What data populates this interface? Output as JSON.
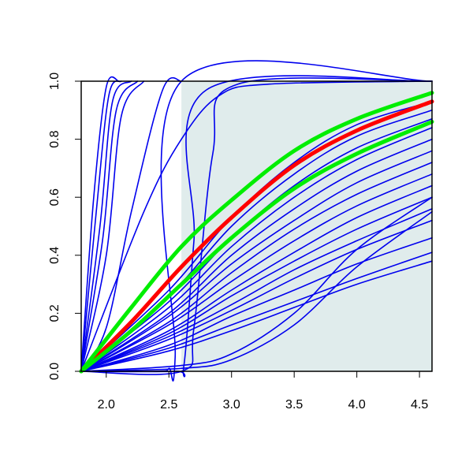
{
  "chart_data": {
    "type": "line",
    "title": "",
    "xlabel": "",
    "ylabel": "",
    "xlim": [
      1.8,
      4.6
    ],
    "ylim": [
      0.0,
      1.0
    ],
    "x_ticks": [
      "2.0",
      "2.5",
      "3.0",
      "3.5",
      "4.0",
      "4.5"
    ],
    "y_ticks": [
      "0.0",
      "0.2",
      "0.4",
      "0.6",
      "0.8",
      "1.0"
    ],
    "x_tick_values": [
      2.0,
      2.5,
      3.0,
      3.5,
      4.0,
      4.5
    ],
    "y_tick_values": [
      0.0,
      0.2,
      0.4,
      0.6,
      0.8,
      1.0
    ],
    "grid": false,
    "shaded_region": {
      "x_from": 2.6,
      "x_to": 4.6,
      "color": "#e0ecec"
    },
    "colors": {
      "ensemble": "#0000ee",
      "highlight_red": "#ff0000",
      "highlight_green": "#00ee00"
    },
    "series": [
      {
        "color": "#0000ee",
        "x": [
          1.8,
          1.9,
          2.0,
          2.1
        ],
        "y": [
          0.0,
          0.6,
          0.98,
          1.0
        ]
      },
      {
        "color": "#0000ee",
        "x": [
          1.8,
          1.92,
          2.02,
          2.12
        ],
        "y": [
          0.0,
          0.55,
          0.95,
          1.0
        ]
      },
      {
        "color": "#0000ee",
        "x": [
          1.8,
          1.95,
          2.05,
          2.2
        ],
        "y": [
          0.0,
          0.5,
          0.93,
          1.0
        ]
      },
      {
        "color": "#0000ee",
        "x": [
          1.8,
          1.97,
          2.08,
          2.25
        ],
        "y": [
          0.0,
          0.45,
          0.9,
          1.0
        ]
      },
      {
        "color": "#0000ee",
        "x": [
          1.8,
          2.0,
          2.12,
          2.3
        ],
        "y": [
          0.0,
          0.4,
          0.88,
          1.0
        ]
      },
      {
        "color": "#0000ee",
        "x": [
          1.8,
          2.0,
          2.2,
          2.45,
          2.6
        ],
        "y": [
          0.0,
          0.15,
          0.55,
          0.97,
          1.0
        ]
      },
      {
        "color": "#0000ee",
        "x": [
          1.8,
          2.3,
          2.6,
          2.9,
          3.3,
          4.6
        ],
        "y": [
          0.0,
          0.55,
          0.8,
          0.95,
          0.99,
          1.0
        ]
      },
      {
        "color": "#0000ee",
        "x": [
          1.8,
          2.4,
          2.5,
          2.55,
          2.6,
          4.6
        ],
        "y": [
          0.0,
          0.0,
          0.01,
          0.05,
          1.0,
          1.0
        ]
      },
      {
        "color": "#0000ee",
        "x": [
          1.8,
          2.55,
          2.62,
          2.7,
          2.8,
          4.6
        ],
        "y": [
          0.0,
          0.0,
          0.02,
          0.45,
          0.97,
          1.0
        ]
      },
      {
        "color": "#0000ee",
        "x": [
          1.8,
          2.6,
          2.7,
          2.85,
          3.05,
          4.6
        ],
        "y": [
          0.0,
          0.0,
          0.15,
          0.75,
          0.99,
          1.0
        ]
      },
      {
        "color": "#0000ee",
        "x": [
          1.8,
          2.5,
          3.0,
          3.5,
          4.0,
          4.6
        ],
        "y": [
          0.0,
          0.28,
          0.53,
          0.72,
          0.85,
          0.93
        ]
      },
      {
        "color": "#0000ee",
        "x": [
          1.8,
          2.5,
          3.0,
          3.5,
          4.0,
          4.6
        ],
        "y": [
          0.0,
          0.26,
          0.5,
          0.68,
          0.81,
          0.9
        ]
      },
      {
        "color": "#0000ee",
        "x": [
          1.8,
          2.5,
          3.0,
          3.5,
          4.0,
          4.6
        ],
        "y": [
          0.0,
          0.24,
          0.46,
          0.64,
          0.77,
          0.87
        ]
      },
      {
        "color": "#0000ee",
        "x": [
          1.8,
          2.5,
          3.0,
          3.5,
          4.0,
          4.6
        ],
        "y": [
          0.0,
          0.22,
          0.43,
          0.6,
          0.73,
          0.84
        ]
      },
      {
        "color": "#0000ee",
        "x": [
          1.8,
          2.5,
          3.0,
          3.5,
          4.0,
          4.6
        ],
        "y": [
          0.0,
          0.2,
          0.4,
          0.56,
          0.69,
          0.8
        ]
      },
      {
        "color": "#0000ee",
        "x": [
          1.8,
          2.5,
          3.0,
          3.5,
          4.0,
          4.6
        ],
        "y": [
          0.0,
          0.19,
          0.37,
          0.52,
          0.65,
          0.76
        ]
      },
      {
        "color": "#0000ee",
        "x": [
          1.8,
          2.5,
          3.0,
          3.5,
          4.0,
          4.6
        ],
        "y": [
          0.0,
          0.17,
          0.34,
          0.49,
          0.61,
          0.72
        ]
      },
      {
        "color": "#0000ee",
        "x": [
          1.8,
          2.5,
          3.0,
          3.5,
          4.0,
          4.6
        ],
        "y": [
          0.0,
          0.16,
          0.31,
          0.45,
          0.57,
          0.68
        ]
      },
      {
        "color": "#0000ee",
        "x": [
          1.8,
          2.5,
          3.0,
          3.5,
          4.0,
          4.6
        ],
        "y": [
          0.0,
          0.14,
          0.28,
          0.41,
          0.53,
          0.64
        ]
      },
      {
        "color": "#0000ee",
        "x": [
          1.8,
          2.5,
          3.0,
          3.5,
          4.0,
          4.6
        ],
        "y": [
          0.0,
          0.13,
          0.26,
          0.38,
          0.49,
          0.6
        ]
      },
      {
        "color": "#0000ee",
        "x": [
          1.8,
          2.5,
          3.0,
          3.5,
          4.0,
          4.6
        ],
        "y": [
          0.0,
          0.12,
          0.23,
          0.35,
          0.45,
          0.56
        ]
      },
      {
        "color": "#0000ee",
        "x": [
          1.8,
          2.5,
          3.0,
          3.5,
          4.0,
          4.6
        ],
        "y": [
          0.0,
          0.11,
          0.21,
          0.32,
          0.42,
          0.52
        ]
      },
      {
        "color": "#0000ee",
        "x": [
          1.8,
          2.5,
          3.0,
          3.5,
          4.0,
          4.6
        ],
        "y": [
          0.0,
          0.09,
          0.19,
          0.28,
          0.37,
          0.46
        ]
      },
      {
        "color": "#0000ee",
        "x": [
          1.8,
          2.5,
          3.0,
          3.5,
          4.0,
          4.6
        ],
        "y": [
          0.0,
          0.08,
          0.16,
          0.24,
          0.32,
          0.41
        ]
      },
      {
        "color": "#0000ee",
        "x": [
          1.8,
          2.5,
          3.0,
          3.5,
          4.0,
          4.6
        ],
        "y": [
          0.0,
          0.07,
          0.14,
          0.22,
          0.3,
          0.38
        ]
      },
      {
        "color": "#0000ee",
        "x": [
          1.8,
          2.6,
          3.0,
          3.5,
          4.0,
          4.6
        ],
        "y": [
          0.0,
          0.02,
          0.06,
          0.2,
          0.42,
          0.6
        ]
      },
      {
        "color": "#0000ee",
        "x": [
          1.8,
          2.6,
          3.0,
          3.5,
          4.0,
          4.6
        ],
        "y": [
          0.0,
          0.01,
          0.04,
          0.16,
          0.36,
          0.55
        ]
      },
      {
        "color": "#ff0000",
        "highlight": true,
        "x": [
          1.8,
          2.2,
          2.6,
          3.0,
          3.5,
          4.0,
          4.6
        ],
        "y": [
          0.0,
          0.17,
          0.36,
          0.53,
          0.71,
          0.83,
          0.93
        ]
      },
      {
        "color": "#00ee00",
        "highlight": true,
        "x": [
          1.8,
          2.2,
          2.6,
          3.0,
          3.5,
          4.0,
          4.6
        ],
        "y": [
          0.0,
          0.22,
          0.43,
          0.59,
          0.76,
          0.87,
          0.96
        ]
      },
      {
        "color": "#00ee00",
        "highlight": true,
        "x": [
          1.8,
          2.2,
          2.6,
          3.0,
          3.5,
          4.0,
          4.6
        ],
        "y": [
          0.0,
          0.14,
          0.3,
          0.46,
          0.63,
          0.75,
          0.86
        ]
      }
    ]
  }
}
